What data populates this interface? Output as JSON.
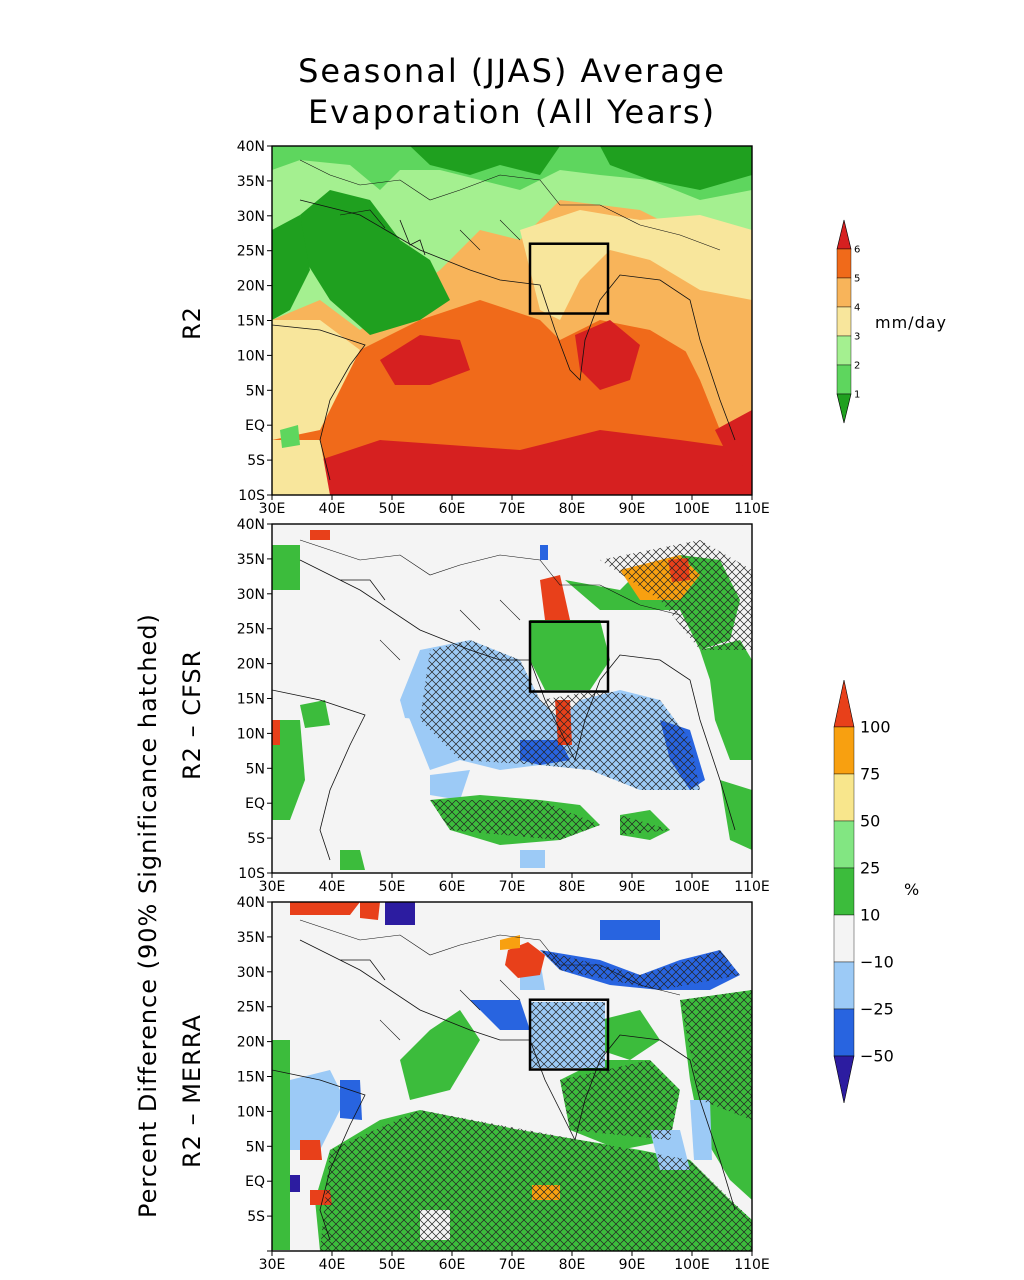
{
  "title": {
    "line1": "Seasonal (JJAS) Average",
    "line2": "Evaporation (All Years)"
  },
  "side_labels": {
    "panel1": "R2",
    "panel2": "R2 – CFSR",
    "panel3": "R2 – MERRA",
    "outer_line1": "Percent Difference (90% Significance hatched)"
  },
  "axes": {
    "lat_ticks": [
      "40N",
      "35N",
      "30N",
      "25N",
      "20N",
      "15N",
      "10N",
      "5N",
      "EQ",
      "5S",
      "10S"
    ],
    "lat_ticks_panel3": [
      "40N",
      "35N",
      "30N",
      "25N",
      "20N",
      "15N",
      "10N",
      "5N",
      "EQ",
      "5S",
      ""
    ],
    "lon_ticks": [
      "30E",
      "40E",
      "50E",
      "60E",
      "70E",
      "80E",
      "90E",
      "100E",
      "110E"
    ],
    "lon_range": [
      30,
      110
    ],
    "lat_range": [
      -10,
      40
    ]
  },
  "colorbar1": {
    "unit": "mm/day",
    "labels": [
      "1",
      "2",
      "3",
      "4",
      "5",
      "6"
    ],
    "colors": [
      "#1fa01f",
      "#5ed65e",
      "#a4f090",
      "#f8e69c",
      "#f8b45a",
      "#f06a1a",
      "#d62020"
    ]
  },
  "colorbar2": {
    "unit": "%",
    "labels": [
      "−50",
      "−25",
      "−10",
      "10",
      "25",
      "50",
      "75",
      "100"
    ],
    "colors": [
      "#2c1ca0",
      "#2864e0",
      "#9ccaf6",
      "#f4f4f4",
      "#3cbc3c",
      "#82e682",
      "#f8e68c",
      "#f8a010",
      "#e8401a"
    ]
  },
  "focus_box": {
    "lon": [
      73,
      86
    ],
    "lat": [
      16,
      26
    ]
  },
  "colors": {
    "land_arid": "#3cbc3c",
    "ocean_warm": "#f06a1a",
    "ocean_hot": "#d62020",
    "neutral": "#f4f4f4"
  }
}
